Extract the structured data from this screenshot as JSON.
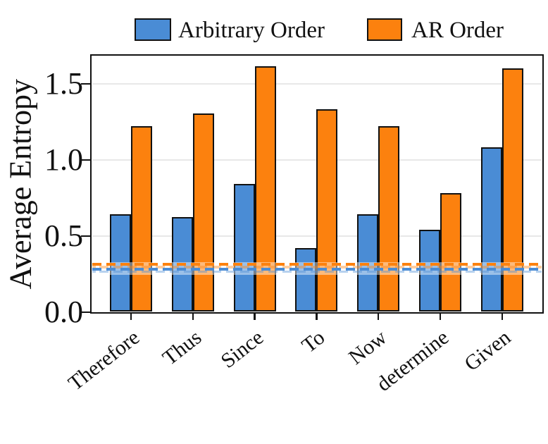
{
  "chart_data": {
    "type": "bar",
    "title": "",
    "categories": [
      "Therefore",
      "Thus",
      "Since",
      "To",
      "Now",
      "determine",
      "Given"
    ],
    "series": [
      {
        "name": "Arbitrary Order",
        "color": "#4A8CD5",
        "values": [
          0.64,
          0.62,
          0.84,
          0.42,
          0.64,
          0.54,
          1.08
        ]
      },
      {
        "name": "AR Order",
        "color": "#FC810E",
        "values": [
          1.22,
          1.3,
          1.61,
          1.33,
          1.22,
          0.78,
          1.6
        ]
      }
    ],
    "baselines": [
      {
        "name": "Arbitrary Order baseline",
        "value": 0.28,
        "color": "#4A8CD5",
        "style": "dashed"
      },
      {
        "name": "AR Order baseline",
        "value": 0.31,
        "color": "#FC810E",
        "style": "dashed"
      }
    ],
    "xlabel": "",
    "ylabel": "Average Entropy",
    "ylim": [
      0,
      1.69
    ],
    "yticks": [
      0,
      0.5,
      1.0,
      1.5
    ],
    "ytick_labels": [
      "0.0",
      "0.5",
      "1.0",
      "1.5"
    ],
    "x_tick_label_rotation_deg": 38,
    "grid": "horizontal",
    "legend_position": "top",
    "bar_edge_color": "#111111",
    "background_color": "#ffffff"
  }
}
